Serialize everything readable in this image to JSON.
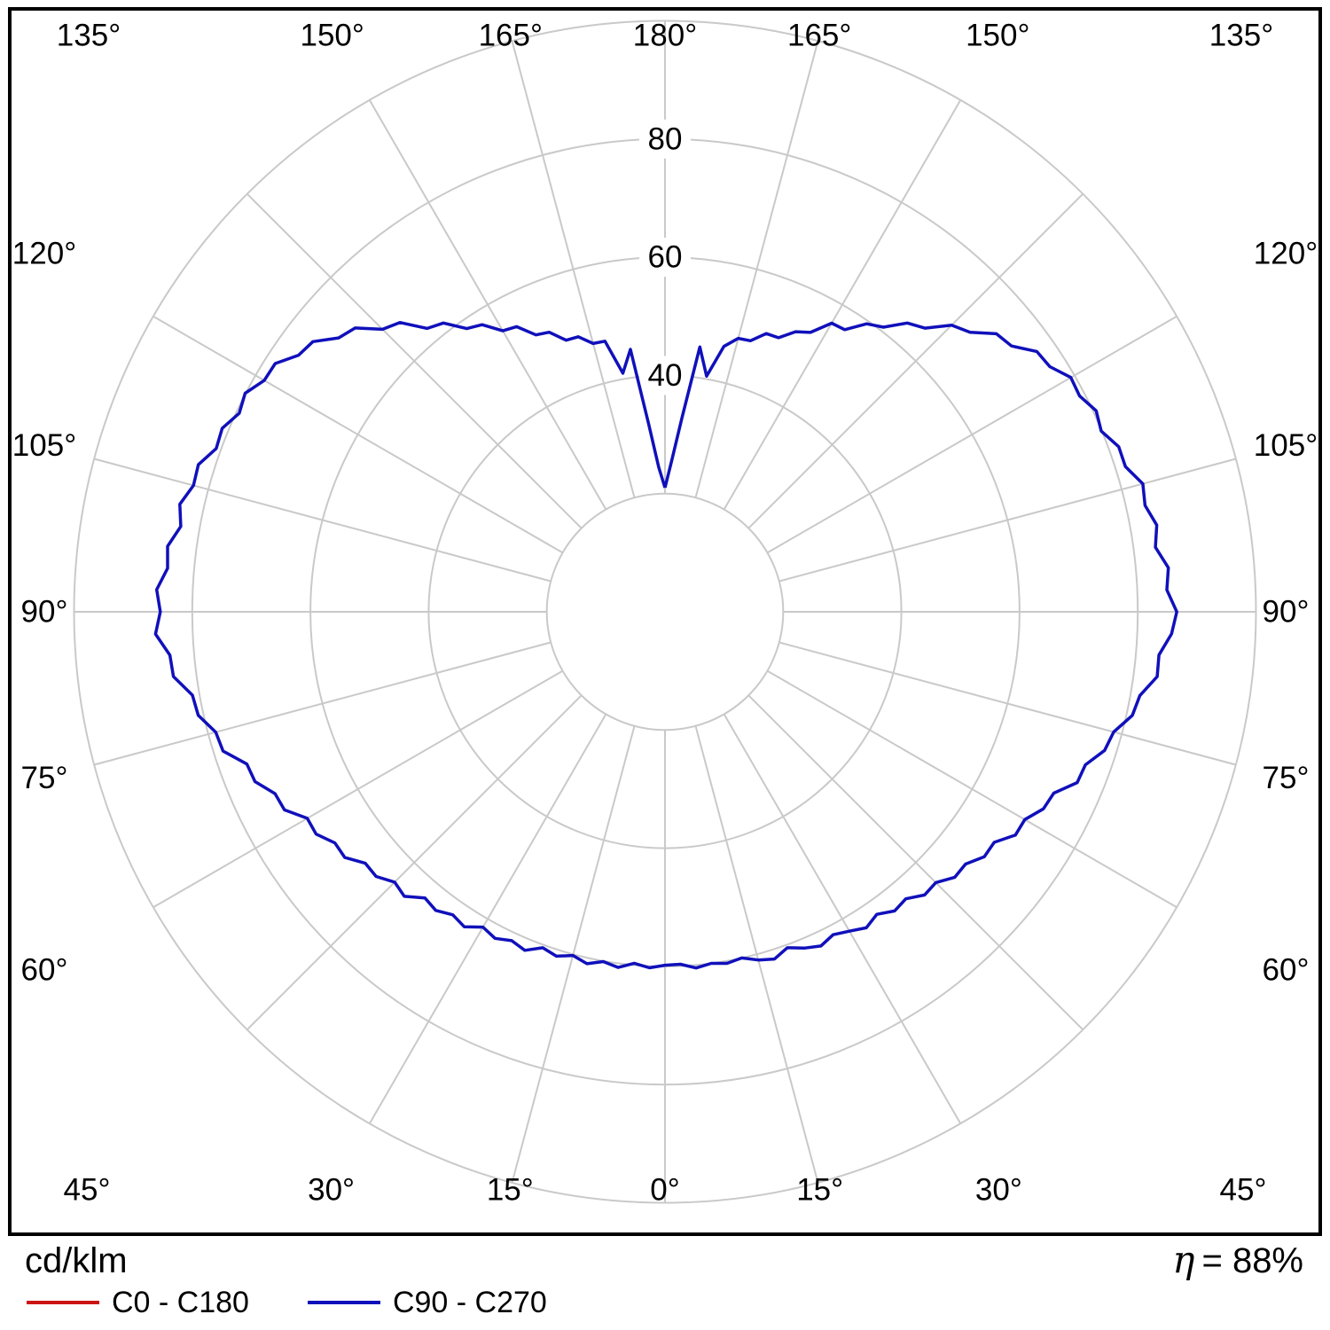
{
  "footer": {
    "units": "cd/klm",
    "eta": {
      "symbol": "η",
      "value": "= 88%"
    }
  },
  "legend": {
    "items": [
      {
        "label": "C0 - C180",
        "color": "#cc1414"
      },
      {
        "label": "C90 - C270",
        "color": "#1010bb"
      }
    ]
  },
  "chart_data": {
    "type": "line",
    "subtype": "polar-photometric-intensity",
    "units": "cd/klm",
    "efficiency": "η = 88%",
    "angle_unit": "degrees",
    "gamma_convention": "0 deg at bottom (nadir), 180 deg at top (zenith); negative gamma = C270 half, positive gamma = C90 half",
    "radial_range": [
      0,
      100
    ],
    "grid": {
      "rings": [
        20,
        40,
        60,
        80,
        100
      ],
      "ring_labels": [
        {
          "value": 40,
          "label": "40"
        },
        {
          "value": 60,
          "label": "60"
        },
        {
          "value": 80,
          "label": "80"
        }
      ],
      "spoke_step_deg": 15,
      "angle_labels": [
        {
          "gamma": 0,
          "label": "0°"
        },
        {
          "gamma": 15,
          "label": "15°"
        },
        {
          "gamma": -15,
          "label": "15°"
        },
        {
          "gamma": 30,
          "label": "30°"
        },
        {
          "gamma": -30,
          "label": "30°"
        },
        {
          "gamma": 45,
          "label": "45°"
        },
        {
          "gamma": -45,
          "label": "45°"
        },
        {
          "gamma": 60,
          "label": "60°"
        },
        {
          "gamma": -60,
          "label": "60°"
        },
        {
          "gamma": 75,
          "label": "75°"
        },
        {
          "gamma": -75,
          "label": "75°"
        },
        {
          "gamma": 90,
          "label": "90°"
        },
        {
          "gamma": -90,
          "label": "90°"
        },
        {
          "gamma": 105,
          "label": "105°"
        },
        {
          "gamma": -105,
          "label": "105°"
        },
        {
          "gamma": 120,
          "label": "120°"
        },
        {
          "gamma": -120,
          "label": "120°"
        },
        {
          "gamma": 135,
          "label": "135°"
        },
        {
          "gamma": -135,
          "label": "135°"
        },
        {
          "gamma": 150,
          "label": "150°"
        },
        {
          "gamma": -150,
          "label": "150°"
        },
        {
          "gamma": 165,
          "label": "165°"
        },
        {
          "gamma": -165,
          "label": "165°"
        },
        {
          "gamma": 180,
          "label": "180°"
        }
      ]
    },
    "series": [
      {
        "name": "C0 - C180",
        "color": "#cc1414",
        "points": []
      },
      {
        "name": "C90 - C270",
        "color": "#1010bb",
        "points": [
          [
            -180,
            21.0
          ],
          [
            -177.5,
            24.5
          ],
          [
            -175,
            32.0
          ],
          [
            -172.5,
            44.8
          ],
          [
            -170,
            41.0
          ],
          [
            -167.5,
            46.9
          ],
          [
            -165,
            47.0
          ],
          [
            -162.5,
            48.8
          ],
          [
            -160,
            48.9
          ],
          [
            -157.5,
            51.2
          ],
          [
            -155,
            51.7
          ],
          [
            -152.5,
            54.4
          ],
          [
            -150,
            54.9
          ],
          [
            -147.5,
            57.6
          ],
          [
            -145,
            58.5
          ],
          [
            -142.5,
            61.6
          ],
          [
            -140,
            62.6
          ],
          [
            -137.5,
            66.4
          ],
          [
            -135,
            67.6
          ],
          [
            -132.5,
            71.1
          ],
          [
            -130,
            72.1
          ],
          [
            -127.5,
            75.1
          ],
          [
            -125,
            75.7
          ],
          [
            -122.5,
            78.2
          ],
          [
            -120,
            78.3
          ],
          [
            -117.5,
            80.1
          ],
          [
            -115,
            79.5
          ],
          [
            -112.5,
            81.1
          ],
          [
            -110,
            80.8
          ],
          [
            -107.5,
            82.8
          ],
          [
            -105,
            82.6
          ],
          [
            -102.5,
            84.1
          ],
          [
            -100,
            83.2
          ],
          [
            -97.5,
            84.9
          ],
          [
            -95,
            84.5
          ],
          [
            -92.5,
            86.1
          ],
          [
            -90,
            85.4
          ],
          [
            -87.5,
            86.3
          ],
          [
            -85,
            84.1
          ],
          [
            -82.5,
            83.9
          ],
          [
            -80,
            81.2
          ],
          [
            -77.5,
            80.9
          ],
          [
            -75,
            78.7
          ],
          [
            -72.5,
            78.4
          ],
          [
            -70,
            75.3
          ],
          [
            -67.5,
            75.1
          ],
          [
            -65,
            72.8
          ],
          [
            -62.5,
            72.6
          ],
          [
            -60,
            69.9
          ],
          [
            -57.5,
            70.0
          ],
          [
            -55,
            68.2
          ],
          [
            -52.5,
            68.3
          ],
          [
            -50,
            66.2
          ],
          [
            -47.5,
            66.3
          ],
          [
            -45,
            64.7
          ],
          [
            -42.5,
            65.3
          ],
          [
            -40,
            63.2
          ],
          [
            -37.5,
            63.7
          ],
          [
            -35,
            62.6
          ],
          [
            -32.5,
            63.2
          ],
          [
            -30,
            61.6
          ],
          [
            -27.5,
            62.3
          ],
          [
            -25,
            61.4
          ],
          [
            -22.5,
            62.0
          ],
          [
            -20,
            60.5
          ],
          [
            -17.5,
            61.1
          ],
          [
            -15,
            60.2
          ],
          [
            -12.5,
            61.0
          ],
          [
            -10,
            60.1
          ],
          [
            -7.5,
            60.7
          ],
          [
            -5,
            59.7
          ],
          [
            -2.5,
            60.3
          ],
          [
            0,
            59.8
          ],
          [
            2.5,
            59.7
          ],
          [
            5,
            60.5
          ],
          [
            7.5,
            60.0
          ],
          [
            10,
            60.4
          ],
          [
            12.5,
            60.0
          ],
          [
            15,
            61.0
          ],
          [
            17.5,
            61.6
          ],
          [
            20,
            60.5
          ],
          [
            22.5,
            61.6
          ],
          [
            25,
            62.4
          ],
          [
            27.5,
            61.6
          ],
          [
            30,
            62.4
          ],
          [
            32.5,
            63.4
          ],
          [
            35,
            62.5
          ],
          [
            37.5,
            63.8
          ],
          [
            40,
            63.4
          ],
          [
            42.5,
            65.0
          ],
          [
            45,
            64.8
          ],
          [
            47.5,
            66.5
          ],
          [
            50,
            66.4
          ],
          [
            52.5,
            68.1
          ],
          [
            55,
            68.0
          ],
          [
            57.5,
            70.3
          ],
          [
            60,
            70.3
          ],
          [
            62.5,
            72.2
          ],
          [
            65,
            72.6
          ],
          [
            67.5,
            75.5
          ],
          [
            70,
            75.7
          ],
          [
            72.5,
            78.0
          ],
          [
            75,
            78.6
          ],
          [
            77.5,
            81.0
          ],
          [
            80,
            81.6
          ],
          [
            82.5,
            84.0
          ],
          [
            85,
            83.9
          ],
          [
            87.5,
            85.8
          ],
          [
            90,
            86.6
          ],
          [
            92.5,
            85.0
          ],
          [
            95,
            85.5
          ],
          [
            97.5,
            83.7
          ],
          [
            100,
            84.5
          ],
          [
            102.5,
            83.2
          ],
          [
            105,
            83.7
          ],
          [
            107.5,
            81.7
          ],
          [
            110,
            81.7
          ],
          [
            112.5,
            79.9
          ],
          [
            115,
            80.5
          ],
          [
            117.5,
            79.1
          ],
          [
            120,
            79.3
          ],
          [
            122.5,
            77.2
          ],
          [
            125,
            76.8
          ],
          [
            127.5,
            73.9
          ],
          [
            130,
            73.2
          ],
          [
            132.5,
            70.0
          ],
          [
            135,
            68.6
          ],
          [
            137.5,
            65.1
          ],
          [
            140,
            63.8
          ],
          [
            142.5,
            60.7
          ],
          [
            145,
            59.5
          ],
          [
            147.5,
            56.6
          ],
          [
            150,
            56.4
          ],
          [
            152.5,
            53.3
          ],
          [
            155,
            52.3
          ],
          [
            157.5,
            50.2
          ],
          [
            160,
            50.1
          ],
          [
            162.5,
            48.1
          ],
          [
            165,
            47.9
          ],
          [
            167.5,
            46.0
          ],
          [
            170,
            40.5
          ],
          [
            172.5,
            45.2
          ],
          [
            175,
            33.0
          ],
          [
            177.5,
            25.5
          ],
          [
            180,
            21.0
          ]
        ]
      }
    ]
  }
}
